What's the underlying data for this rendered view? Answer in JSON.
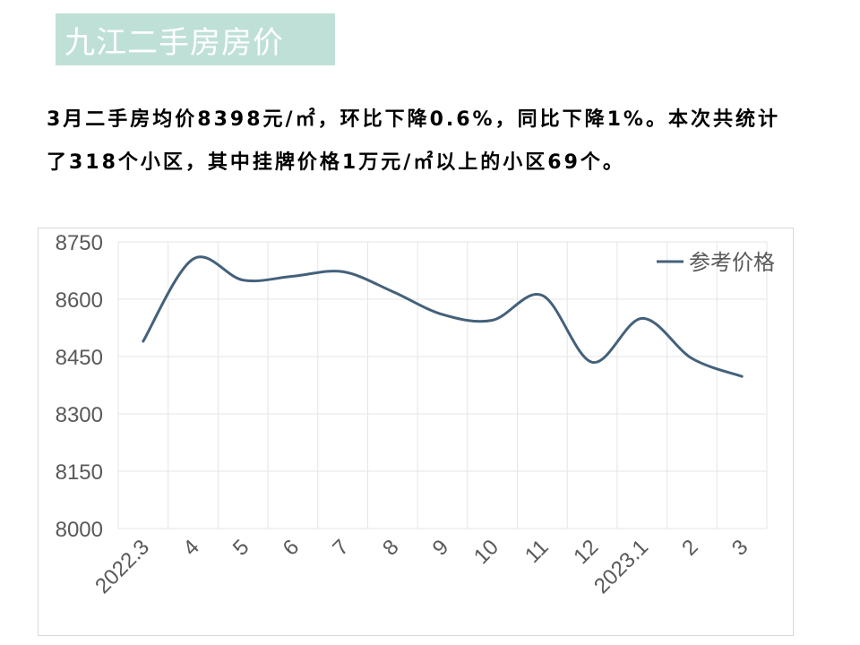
{
  "header": {
    "title": "九江二手房房价"
  },
  "summary": {
    "text": "3月二手房均价8398元/㎡，环比下降0.6%，同比下降1%。本次共统计了318个小区，其中挂牌价格1万元/㎡以上的小区69个。"
  },
  "colors": {
    "title_bg": "#bfe0d7",
    "line": "#44617b",
    "grid": "#e6e6e6",
    "axis_text": "#595959"
  },
  "chart_data": {
    "type": "line",
    "categories": [
      "2022.3",
      "4",
      "5",
      "6",
      "7",
      "8",
      "9",
      "10",
      "11",
      "12",
      "2023.1",
      "2",
      "3"
    ],
    "series": [
      {
        "name": "参考价格",
        "values": [
          8490,
          8705,
          8650,
          8660,
          8672,
          8620,
          8560,
          8545,
          8610,
          8435,
          8550,
          8445,
          8398
        ]
      }
    ],
    "ylim": [
      8000,
      8750
    ],
    "yticks": [
      "8000",
      "8150",
      "8300",
      "8450",
      "8600",
      "8750"
    ],
    "xlabel": "",
    "ylabel": "",
    "legend": "top-right",
    "grid": true,
    "title": ""
  }
}
